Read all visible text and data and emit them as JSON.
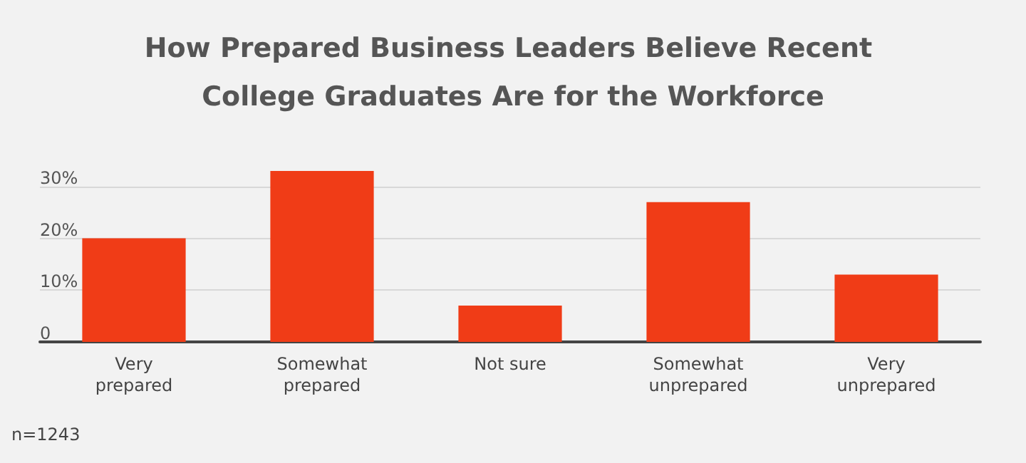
{
  "chart_data": {
    "type": "bar",
    "title": "How Prepared Business Leaders Believe Recent College Graduates Are for the Workforce",
    "categories": [
      "Very prepared",
      "Somewhat prepared",
      "Not sure",
      "Somewhat unprepared",
      "Very unprepared"
    ],
    "values": [
      20,
      33,
      7,
      27,
      13
    ],
    "color": "#f03c17",
    "ylim": [
      0,
      33
    ],
    "yticks": [
      {
        "value": 0,
        "label": "0"
      },
      {
        "value": 10,
        "label": "10%"
      },
      {
        "value": 20,
        "label": "20%"
      },
      {
        "value": 30,
        "label": "30%"
      }
    ],
    "grid": "y",
    "annotations": [
      "n=1243"
    ]
  }
}
